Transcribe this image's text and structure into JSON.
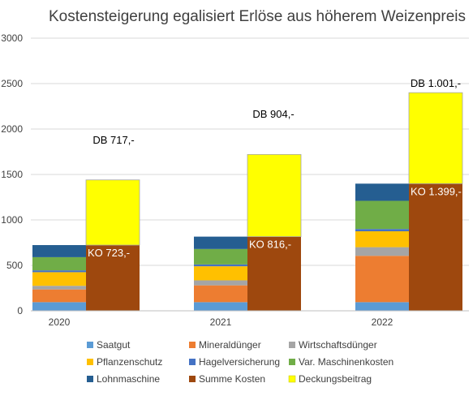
{
  "chart_data": {
    "type": "bar",
    "title": "Kostensteigerung egalisiert Erlöse aus höherem Weizenpreis",
    "categories": [
      "2020",
      "2021",
      "2022"
    ],
    "ylim": [
      0,
      3000
    ],
    "yticks": [
      0,
      500,
      1000,
      1500,
      2000,
      2500,
      3000
    ],
    "grid": true,
    "legend_position": "bottom",
    "cost_series": [
      {
        "name": "Saatgut",
        "color": "#5B9BD5",
        "values": [
          95,
          95,
          95
        ]
      },
      {
        "name": "Mineraldünger",
        "color": "#ED7D31",
        "values": [
          140,
          185,
          510
        ]
      },
      {
        "name": "Wirtschaftsdünger",
        "color": "#A5A5A5",
        "values": [
          40,
          55,
          95
        ]
      },
      {
        "name": "Pflanzenschutz",
        "color": "#FFC000",
        "values": [
          150,
          155,
          175
        ]
      },
      {
        "name": "Hagelversicherung",
        "color": "#4472C4",
        "values": [
          20,
          20,
          25
        ]
      },
      {
        "name": "Var. Maschinenkosten",
        "color": "#70AD47",
        "values": [
          145,
          170,
          310
        ]
      },
      {
        "name": "Lohnmaschine",
        "color": "#255E91",
        "values": [
          133,
          136,
          189
        ]
      }
    ],
    "sum_series": {
      "name": "Summe Kosten",
      "color": "#9E480E",
      "values": [
        723,
        816,
        1399
      ]
    },
    "margin_series": {
      "name": "Deckungsbeitrag",
      "color": "#FFFF00",
      "values": [
        717,
        904,
        1001
      ]
    },
    "ko_labels": [
      "KO 723,-",
      "KO 816,-",
      "KO 1.399,-"
    ],
    "db_labels": [
      "DB 717,-",
      "DB 904,-",
      "DB 1.001,-"
    ],
    "legend": [
      {
        "name": "Saatgut",
        "color": "#5B9BD5"
      },
      {
        "name": "Mineraldünger",
        "color": "#ED7D31"
      },
      {
        "name": "Wirtschaftsdünger",
        "color": "#A5A5A5"
      },
      {
        "name": "Pflanzenschutz",
        "color": "#FFC000"
      },
      {
        "name": "Hagelversicherung",
        "color": "#4472C4"
      },
      {
        "name": "Var. Maschinenkosten",
        "color": "#70AD47"
      },
      {
        "name": "Lohnmaschine",
        "color": "#255E91"
      },
      {
        "name": "Summe Kosten",
        "color": "#9E480E"
      },
      {
        "name": "Deckungsbeitrag",
        "color": "#FFFF00"
      }
    ]
  }
}
